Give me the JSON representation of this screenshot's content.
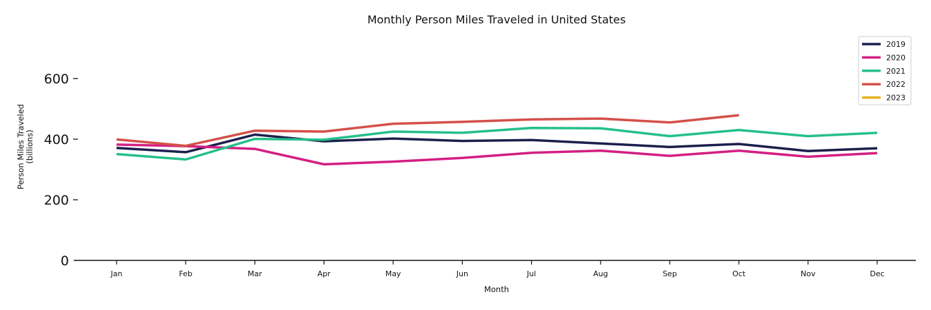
{
  "chart_data": {
    "type": "line",
    "title": "Monthly Person Miles Traveled in United States",
    "xlabel": "Month",
    "ylabel_line1": "Person Miles Traveled",
    "ylabel_line2": "(billions)",
    "categories": [
      "Jan",
      "Feb",
      "Mar",
      "Apr",
      "May",
      "Jun",
      "Jul",
      "Aug",
      "Sep",
      "Oct",
      "Nov",
      "Dec"
    ],
    "ylim": [
      0,
      700
    ],
    "yticks": [
      0,
      200,
      400,
      600
    ],
    "ytick_labels": [
      "0",
      "200",
      "400",
      "600"
    ],
    "grid": false,
    "legend_position": "top-right",
    "series": [
      {
        "name": "2019",
        "color": "#1c1f4d",
        "values": [
          371,
          357,
          415,
          393,
          402,
          394,
          397,
          386,
          374,
          384,
          361,
          370
        ]
      },
      {
        "name": "2020",
        "color": "#d41f82",
        "values": [
          382,
          377,
          368,
          317,
          326,
          338,
          355,
          362,
          345,
          362,
          342,
          354
        ]
      },
      {
        "name": "2021",
        "color": "#25bf8a",
        "values": [
          351,
          333,
          401,
          398,
          425,
          421,
          437,
          436,
          410,
          430,
          410,
          421
        ]
      },
      {
        "name": "2022",
        "color": "#d4504a",
        "values": [
          399,
          378,
          428,
          425,
          451,
          457,
          465,
          468,
          455,
          479,
          null,
          null
        ]
      },
      {
        "name": "2023",
        "color": "#e0b21c",
        "values": [
          null,
          null,
          null,
          null,
          null,
          null,
          null,
          null,
          null,
          null,
          null,
          null
        ]
      }
    ]
  }
}
